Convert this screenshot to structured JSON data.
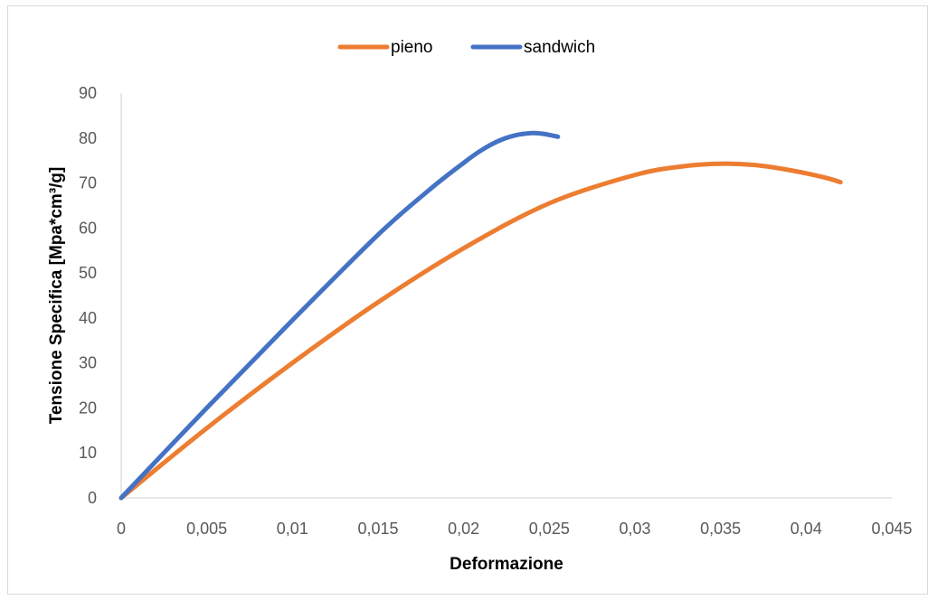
{
  "chart_data": {
    "type": "line",
    "title": "",
    "xlabel": "Deformazione",
    "ylabel": "Tensione Specifica [Mpa*cm³/g]",
    "xlim": [
      0,
      0.045
    ],
    "ylim": [
      0,
      90
    ],
    "x_ticks": [
      "0",
      "0,005",
      "0,01",
      "0,015",
      "0,02",
      "0,025",
      "0,03",
      "0,035",
      "0,04",
      "0,045"
    ],
    "y_ticks": [
      "0",
      "10",
      "20",
      "30",
      "40",
      "50",
      "60",
      "70",
      "80",
      "90"
    ],
    "grid": false,
    "legend_position": "top",
    "series": [
      {
        "name": "pieno",
        "color": "#ED7D31",
        "x": [
          0,
          0.005,
          0.01,
          0.015,
          0.02,
          0.025,
          0.03,
          0.033,
          0.035,
          0.037,
          0.039,
          0.041,
          0.042
        ],
        "y": [
          0,
          15.5,
          30,
          43.5,
          55.5,
          65.5,
          71.8,
          73.8,
          74.3,
          74.0,
          72.9,
          71.3,
          70.2
        ]
      },
      {
        "name": "sandwich",
        "color": "#4472C4",
        "x": [
          0,
          0.005,
          0.01,
          0.015,
          0.018,
          0.02,
          0.021,
          0.022,
          0.023,
          0.024,
          0.0245,
          0.025,
          0.0255
        ],
        "y": [
          0,
          20,
          39.5,
          58.5,
          68.5,
          74.5,
          77.2,
          79.3,
          80.6,
          81.1,
          81.0,
          80.7,
          80.3
        ]
      }
    ]
  }
}
